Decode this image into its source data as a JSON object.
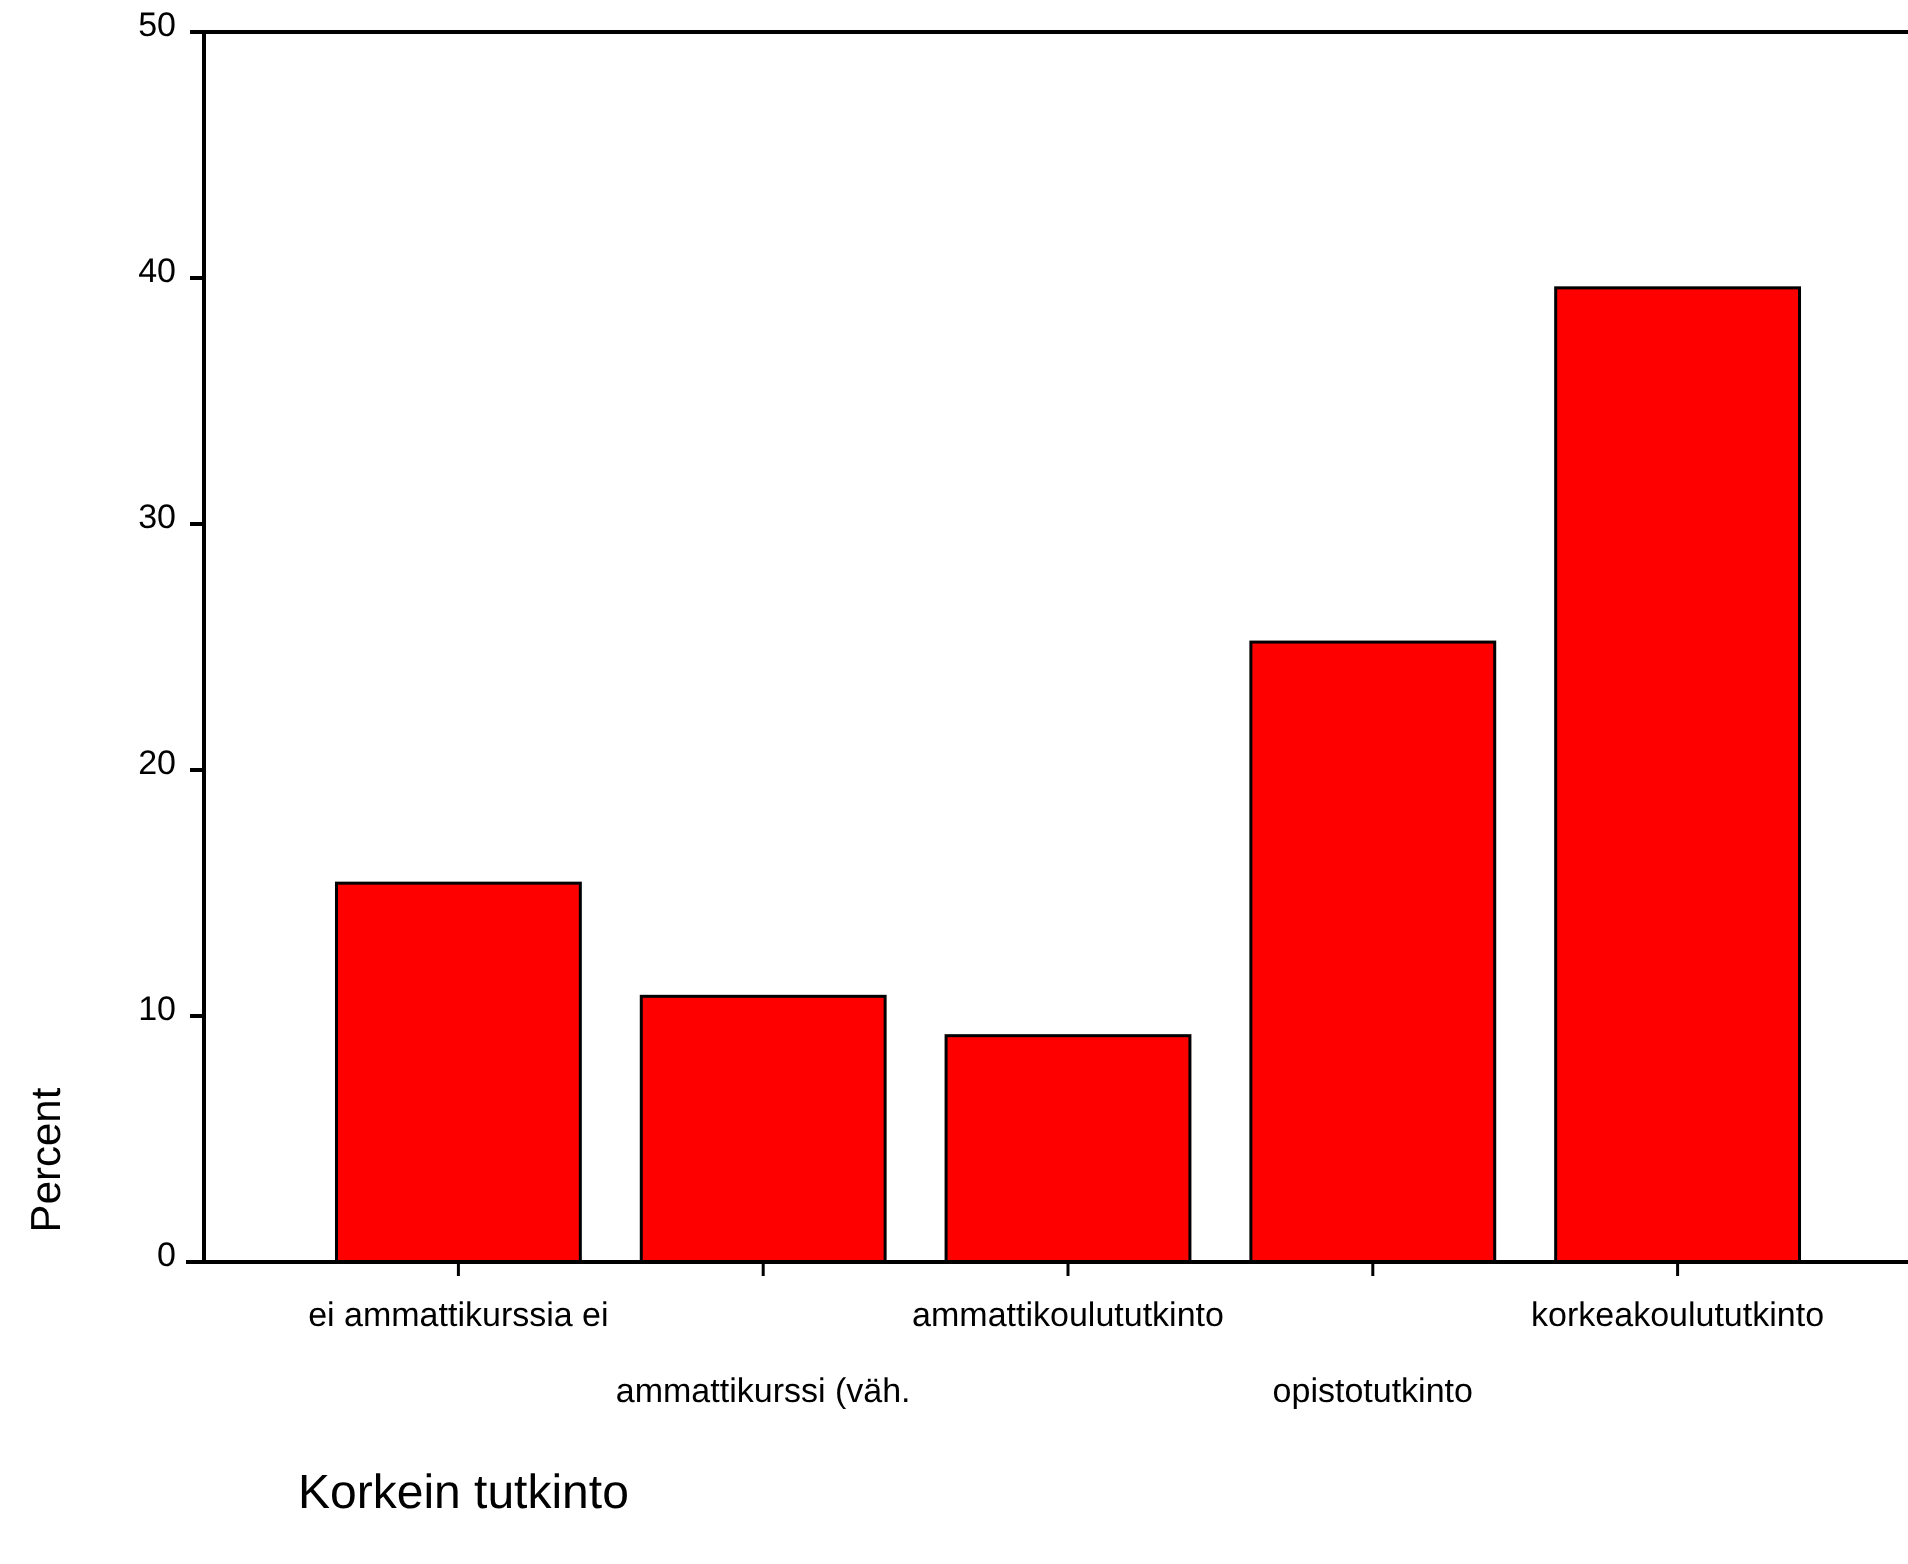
{
  "chart_data": {
    "type": "bar",
    "xlabel": "Korkein tutkinto",
    "ylabel": "Percent",
    "categories": [
      "ei ammattikurssia ei",
      "ammattikurssi (väh.",
      "ammattikoulututkinto",
      "opistotutkinto",
      "korkeakoulututkinto"
    ],
    "values": [
      15.4,
      10.8,
      9.2,
      25.2,
      39.6
    ],
    "color": "#ff0000",
    "ylim": [
      0,
      50
    ],
    "yticks": [
      0,
      10,
      20,
      30,
      40,
      50
    ],
    "grid": false
  }
}
